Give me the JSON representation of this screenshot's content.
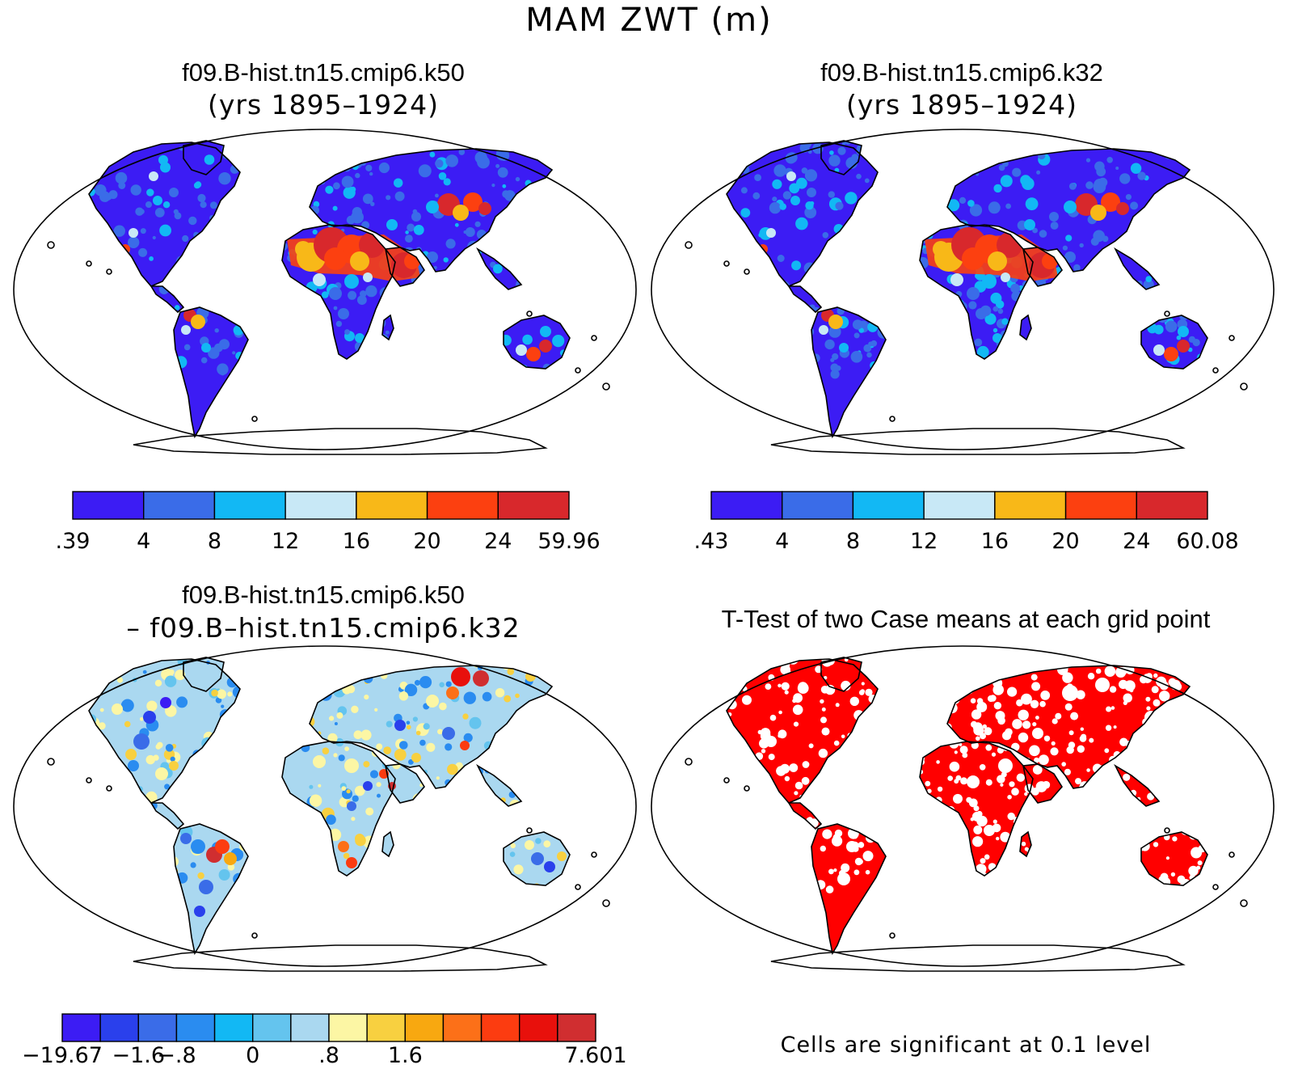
{
  "figure": {
    "title": "MAM ZWT (m)"
  },
  "panels": [
    {
      "id": "k50",
      "title": "f09.B-hist.tn15.cmip6.k50",
      "subtitle": "(yrs 1895–1924)",
      "colorbar": {
        "colors": [
          "#3c1cf4",
          "#3a6ce8",
          "#12b8f4",
          "#c8e8f6",
          "#f8b818",
          "#fc4010",
          "#d8282c"
        ],
        "labels": [
          ".39",
          "4",
          "8",
          "12",
          "16",
          "20",
          "24",
          "59.96"
        ]
      }
    },
    {
      "id": "k32",
      "title": "f09.B-hist.tn15.cmip6.k32",
      "subtitle": "(yrs 1895–1924)",
      "colorbar": {
        "colors": [
          "#3c1cf4",
          "#3a6ce8",
          "#12b8f4",
          "#c8e8f6",
          "#f8b818",
          "#fc4010",
          "#d8282c"
        ],
        "labels": [
          ".43",
          "4",
          "8",
          "12",
          "16",
          "20",
          "24",
          "60.08"
        ]
      }
    },
    {
      "id": "diff",
      "title": "f09.B-hist.tn15.cmip6.k50",
      "subtitle": "– f09.B–hist.tn15.cmip6.k32",
      "colorbar": {
        "colors": [
          "#3c1cf4",
          "#2a40ec",
          "#3a6ce8",
          "#2a8cf0",
          "#12b8f4",
          "#64c4ee",
          "#aad8f0",
          "#fcf6a4",
          "#f8d040",
          "#f8a810",
          "#fc7018",
          "#fc3c10",
          "#e8100c",
          "#d02e30"
        ],
        "labels": [
          "−19.67",
          "",
          "−1.6",
          "−.8",
          "",
          "0",
          "",
          ".8",
          "",
          "1.6",
          "",
          "",
          "",
          "",
          "7.601"
        ]
      }
    },
    {
      "id": "ttest",
      "title": "T-Test of two Case means at each grid point",
      "note": "Cells are significant at 0.1 level"
    }
  ]
}
